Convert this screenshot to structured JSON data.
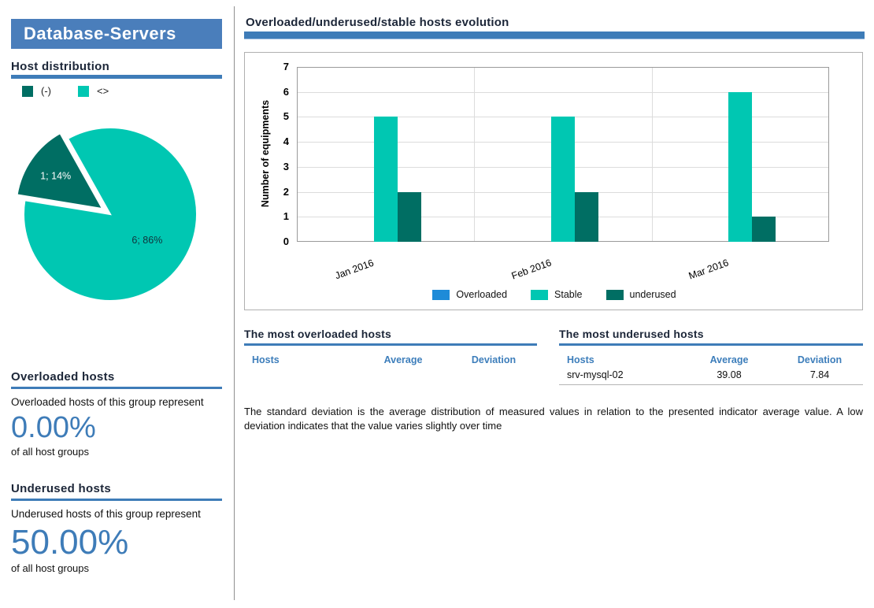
{
  "sidebar": {
    "group_title": "Database-Servers",
    "host_distribution_title": "Host distribution",
    "overloaded": {
      "title": "Overloaded hosts",
      "description": "Overloaded hosts of this group represent",
      "value": "0.00%",
      "suffix": "of all host groups"
    },
    "underused": {
      "title": "Underused hosts",
      "description": "Underused hosts of this group represent",
      "value": "50.00%",
      "suffix": "of all host groups"
    }
  },
  "main": {
    "evolution_title": "Overloaded/underused/stable hosts evolution",
    "overloaded_table": {
      "title": "The most overloaded hosts",
      "headers": [
        "Hosts",
        "Average",
        "Deviation"
      ],
      "rows": []
    },
    "underused_table": {
      "title": "The most underused hosts",
      "headers": [
        "Hosts",
        "Average",
        "Deviation"
      ],
      "rows": [
        [
          "srv-mysql-02",
          "39.08",
          "7.84"
        ]
      ]
    },
    "note": "The standard deviation is the average distribution of measured values in relation to the presented indicator average value. A low  deviation indicates that the value varies slightly over time"
  },
  "colors": {
    "accent_blue": "#3e7cb8",
    "header_blue": "#4a7ebb",
    "stable_teal": "#00c7b2",
    "underused_dark_teal": "#006e63",
    "overloaded_blue": "#1e8bd8"
  },
  "chart_data": [
    {
      "type": "pie",
      "title": "Host distribution",
      "labels": [
        "(-)",
        "<>"
      ],
      "values": [
        1,
        6
      ],
      "display_labels": [
        "1; 14%",
        "6; 86%"
      ],
      "colors": [
        "#006e63",
        "#00c7b2"
      ]
    },
    {
      "type": "bar",
      "title": "Overloaded/underused/stable hosts evolution",
      "categories": [
        "Jan 2016",
        "Feb 2016",
        "Mar 2016"
      ],
      "series": [
        {
          "name": "Overloaded",
          "color": "#1e8bd8",
          "values": [
            0,
            0,
            0
          ]
        },
        {
          "name": "Stable",
          "color": "#00c7b2",
          "values": [
            5,
            5,
            6
          ]
        },
        {
          "name": "underused",
          "color": "#006e63",
          "values": [
            2,
            2,
            1
          ]
        }
      ],
      "ylabel": "Number of equipments",
      "ylim": [
        0,
        7
      ],
      "legend_position": "bottom",
      "grid": true
    }
  ]
}
